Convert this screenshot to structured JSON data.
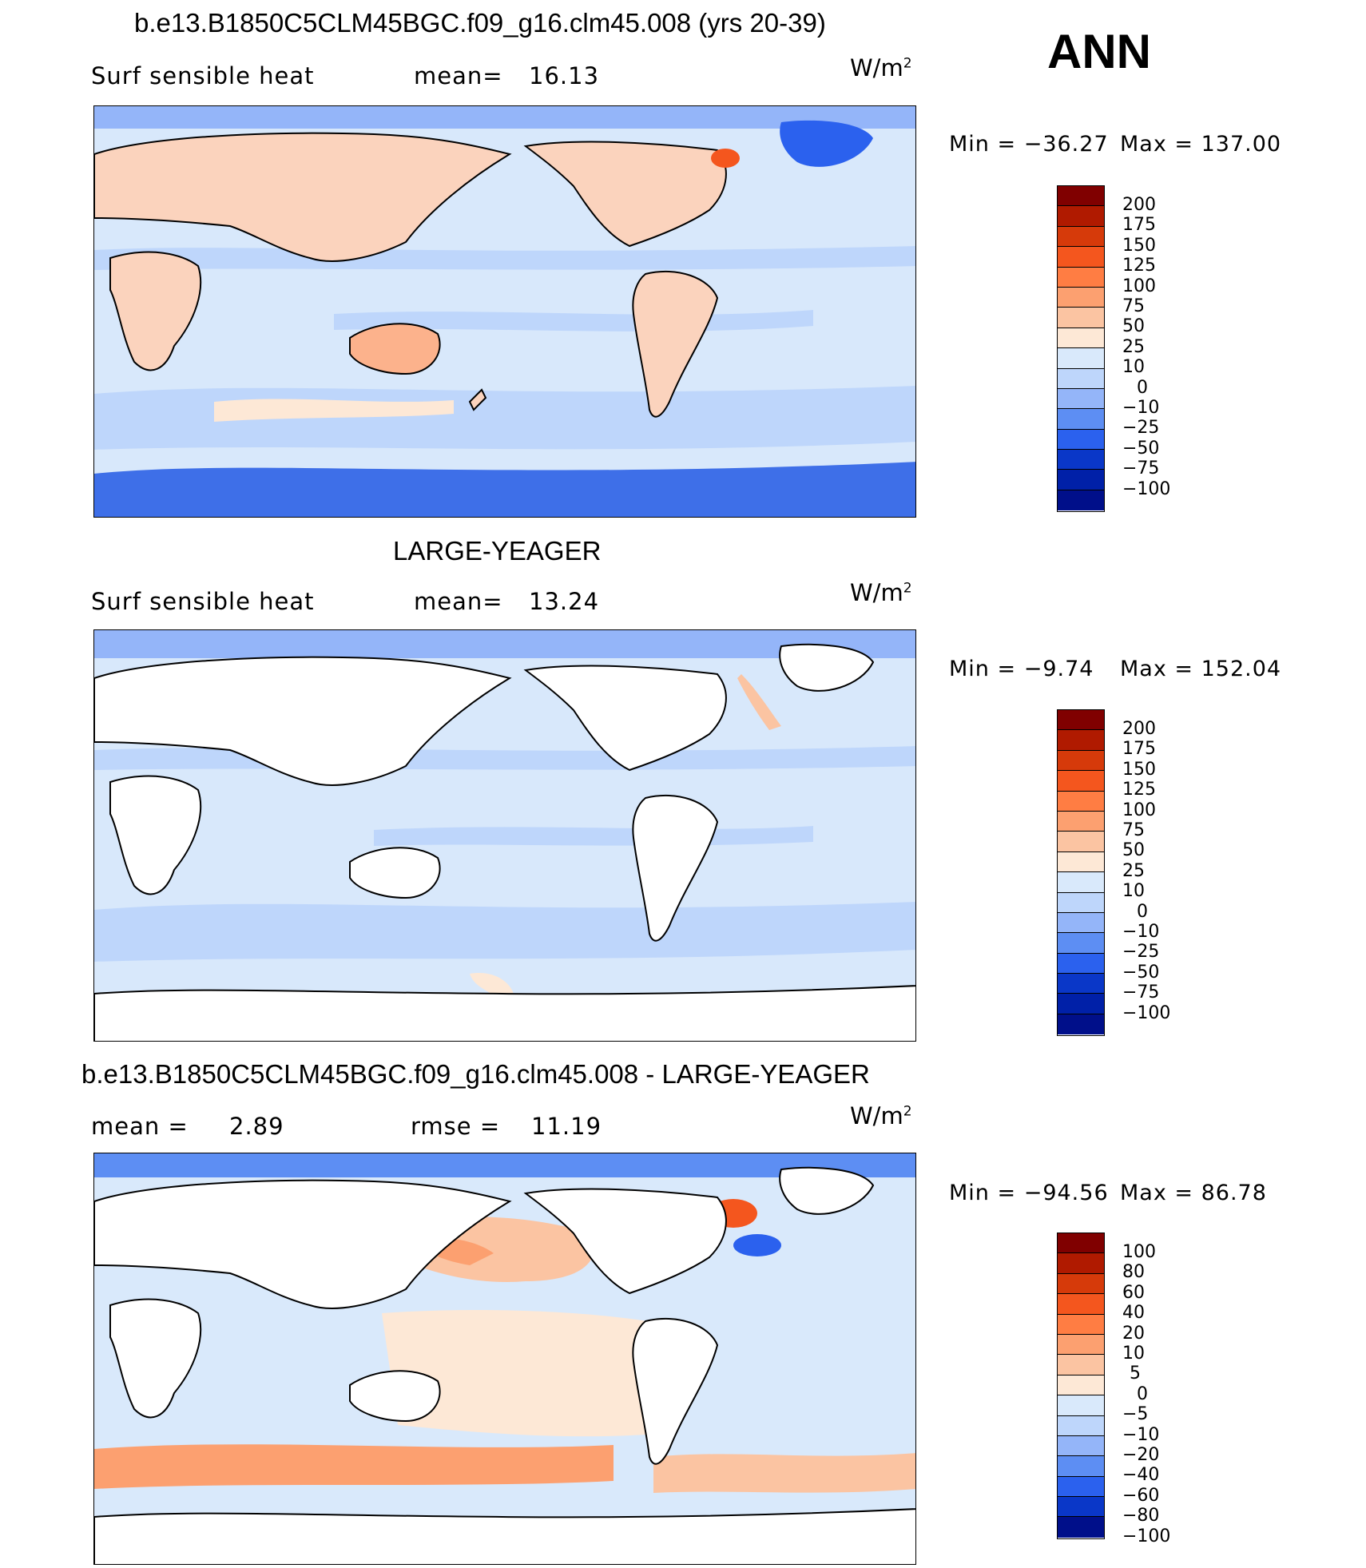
{
  "chart_data": [
    {
      "type": "heatmap",
      "title": "b.e13.B1850C5CLM45BGC.f09_g16.clm45.008 (yrs 20-39)",
      "variable": "Surf  sensible  heat",
      "stat_label": "mean=",
      "stat_value": "16.13",
      "units_base": "W/m",
      "units_exp": "2",
      "min_label": "Min  =  −36.27",
      "max_label": "Max  =  137.00",
      "min": -36.27,
      "max": 137.0,
      "contour_levels": [
        "200",
        "175",
        "150",
        "125",
        "100",
        "75",
        "50",
        "25",
        "10",
        "0",
        "−10",
        "−25",
        "−50",
        "−75",
        "−100"
      ],
      "land_shaded": true
    },
    {
      "type": "heatmap",
      "title": "LARGE-YEAGER",
      "variable": "Surf  sensible  heat",
      "stat_label": "mean=",
      "stat_value": "13.24",
      "units_base": "W/m",
      "units_exp": "2",
      "min_label": "Min  =    −9.74",
      "max_label": "Max  =  152.04",
      "min": -9.74,
      "max": 152.04,
      "contour_levels": [
        "200",
        "175",
        "150",
        "125",
        "100",
        "75",
        "50",
        "25",
        "10",
        "0",
        "−10",
        "−25",
        "−50",
        "−75",
        "−100"
      ],
      "land_shaded": false
    },
    {
      "type": "heatmap",
      "title": "b.e13.B1850C5CLM45BGC.f09_g16.clm45.008 - LARGE-YEAGER",
      "mean_label": "mean  =",
      "mean_value": "2.89",
      "rmse_label": "rmse  =",
      "rmse_value": "11.19",
      "units_base": "W/m",
      "units_exp": "2",
      "min_label": "Min  =  −94.56",
      "max_label": "Max  =    86.78",
      "min": -94.56,
      "max": 86.78,
      "contour_levels": [
        "100",
        "80",
        "60",
        "40",
        "20",
        "10",
        "5",
        "0",
        "−5",
        "−10",
        "−20",
        "−40",
        "−60",
        "−80",
        "−100"
      ],
      "land_shaded": false
    }
  ],
  "season": "ANN",
  "colors": {
    "scale_15": [
      "#800000",
      "#b01a00",
      "#d63a0a",
      "#f4561e",
      "#ff7d43",
      "#fca070",
      "#fbc4a2",
      "#fde8d6",
      "#d9e9fb",
      "#bed6fb",
      "#94b5f9",
      "#5d8ef3",
      "#2b61ee",
      "#0a37c8",
      "#000f8a"
    ],
    "scale_16": [
      "#800000",
      "#b01a00",
      "#d63a0a",
      "#f4561e",
      "#ff7d43",
      "#fca070",
      "#fbc4a2",
      "#fde8d6",
      "#d9e9fb",
      "#bed6fb",
      "#94b5f9",
      "#5d8ef3",
      "#2b61ee",
      "#0a37c8",
      "#0020a8",
      "#000f8a"
    ],
    "ocean_base": "#d8e8fb",
    "land_warm": "#fbd3bd",
    "polar": "#3e6fe8"
  }
}
